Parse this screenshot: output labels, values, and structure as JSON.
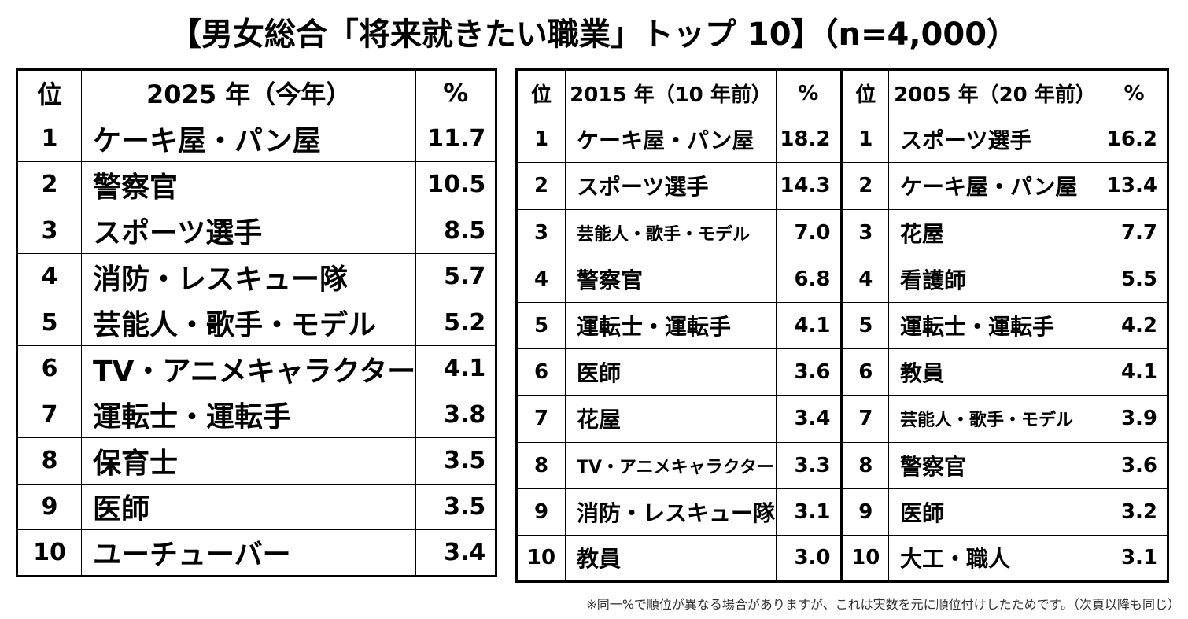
{
  "title": "【男女総合「将来就きたい職業」トップ 10】（n=4,000）",
  "table_2025": {
    "headers": {
      "rank": "位",
      "year": "2025 年（今年）",
      "pct": "%"
    },
    "rows": [
      {
        "rank": "1",
        "job": "ケーキ屋・パン屋",
        "pct": "11.7"
      },
      {
        "rank": "2",
        "job": "警察官",
        "pct": "10.5"
      },
      {
        "rank": "3",
        "job": "スポーツ選手",
        "pct": "8.5"
      },
      {
        "rank": "4",
        "job": "消防・レスキュー隊",
        "pct": "5.7"
      },
      {
        "rank": "5",
        "job": "芸能人・歌手・モデル",
        "pct": "5.2"
      },
      {
        "rank": "6",
        "job": "TV・アニメキャラクター",
        "pct": "4.1"
      },
      {
        "rank": "7",
        "job": "運転士・運転手",
        "pct": "3.8"
      },
      {
        "rank": "8",
        "job": "保育士",
        "pct": "3.5"
      },
      {
        "rank": "9",
        "job": "医師",
        "pct": "3.5"
      },
      {
        "rank": "10",
        "job": "ユーチューバー",
        "pct": "3.4"
      }
    ]
  },
  "table_2015": {
    "headers": {
      "rank": "位",
      "year": "2015 年（10 年前）",
      "pct": "%"
    },
    "rows": [
      {
        "rank": "1",
        "job": "ケーキ屋・パン屋",
        "pct": "18.2"
      },
      {
        "rank": "2",
        "job": "スポーツ選手",
        "pct": "14.3"
      },
      {
        "rank": "3",
        "job": "芸能人・歌手・モデル",
        "pct": "7.0"
      },
      {
        "rank": "4",
        "job": "警察官",
        "pct": "6.8"
      },
      {
        "rank": "5",
        "job": "運転士・運転手",
        "pct": "4.1"
      },
      {
        "rank": "6",
        "job": "医師",
        "pct": "3.6"
      },
      {
        "rank": "7",
        "job": "花屋",
        "pct": "3.4"
      },
      {
        "rank": "8",
        "job": "TV・アニメキャラクター",
        "pct": "3.3"
      },
      {
        "rank": "9",
        "job": "消防・レスキュー隊",
        "pct": "3.1"
      },
      {
        "rank": "10",
        "job": "教員",
        "pct": "3.0"
      }
    ]
  },
  "table_2005": {
    "headers": {
      "rank": "位",
      "year": "2005 年（20 年前）",
      "pct": "%"
    },
    "rows": [
      {
        "rank": "1",
        "job": "スポーツ選手",
        "pct": "16.2"
      },
      {
        "rank": "2",
        "job": "ケーキ屋・パン屋",
        "pct": "13.4"
      },
      {
        "rank": "3",
        "job": "花屋",
        "pct": "7.7"
      },
      {
        "rank": "4",
        "job": "看護師",
        "pct": "5.5"
      },
      {
        "rank": "5",
        "job": "運転士・運転手",
        "pct": "4.2"
      },
      {
        "rank": "6",
        "job": "教員",
        "pct": "4.1"
      },
      {
        "rank": "7",
        "job": "芸能人・歌手・モデル",
        "pct": "3.9"
      },
      {
        "rank": "8",
        "job": "警察官",
        "pct": "3.6"
      },
      {
        "rank": "9",
        "job": "医師",
        "pct": "3.2"
      },
      {
        "rank": "10",
        "job": "大工・職人",
        "pct": "3.1"
      }
    ]
  },
  "footnote": "※同一%で順位が異なる場合がありますが、これは実数を元に順位付けしたためです。（次頁以降も同じ）"
}
